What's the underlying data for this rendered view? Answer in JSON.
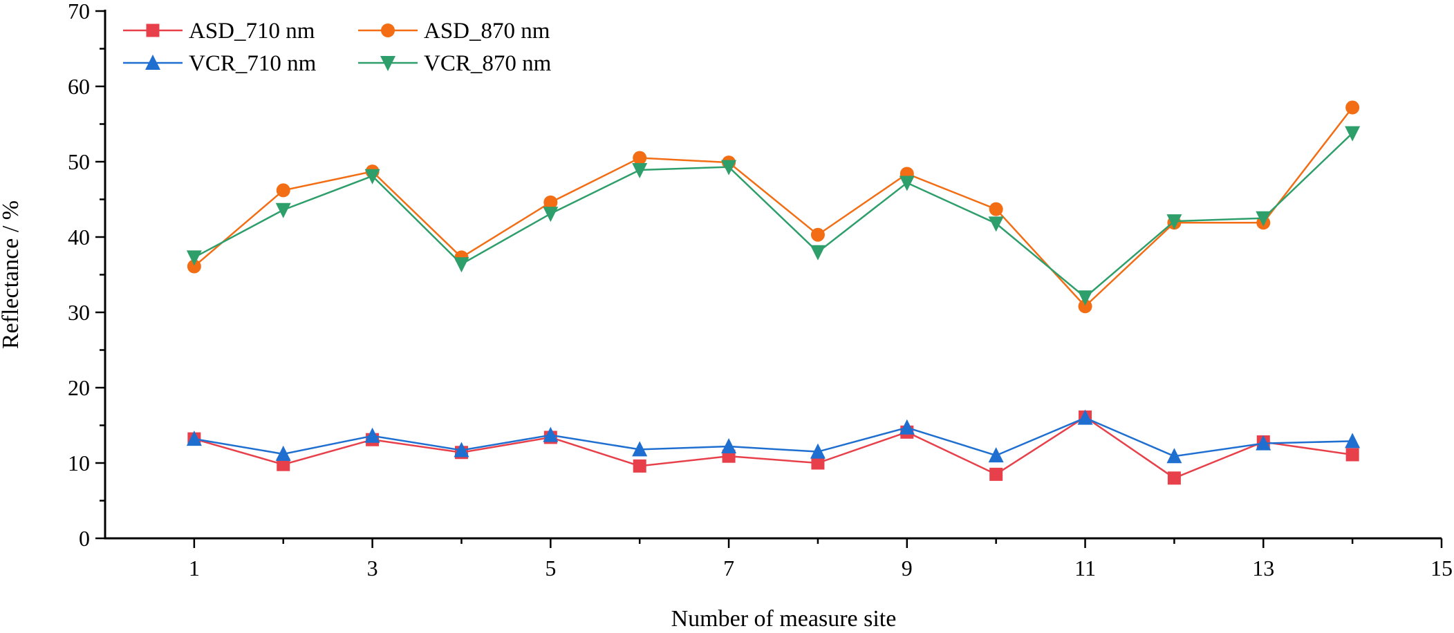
{
  "chart_data": {
    "type": "line",
    "title": "",
    "xlabel": "Number of measure site",
    "ylabel": "Reflectance / %",
    "xlim": [
      0,
      15
    ],
    "ylim": [
      0,
      70
    ],
    "xticks_labeled": [
      1,
      3,
      5,
      7,
      9,
      11,
      13,
      15
    ],
    "xticks_minor": [
      2,
      4,
      6,
      8,
      10,
      12,
      14
    ],
    "yticks": [
      0,
      10,
      20,
      30,
      40,
      50,
      60,
      70
    ],
    "grid": false,
    "legend_position": "top-left",
    "x": [
      1,
      2,
      3,
      4,
      5,
      6,
      7,
      8,
      9,
      10,
      11,
      12,
      13,
      14
    ],
    "series": [
      {
        "name": "ASD_710 nm",
        "color": "#e8404a",
        "marker": "square",
        "values": [
          13.2,
          9.8,
          13.1,
          11.4,
          13.4,
          9.6,
          10.9,
          10.0,
          14.1,
          8.5,
          16.1,
          8.0,
          12.8,
          11.1
        ]
      },
      {
        "name": "ASD_870 nm",
        "color": "#f26d14",
        "marker": "circle",
        "values": [
          36.1,
          46.2,
          48.7,
          37.3,
          44.6,
          50.5,
          49.9,
          40.3,
          48.4,
          43.7,
          30.8,
          41.9,
          41.9,
          57.2
        ]
      },
      {
        "name": "VCR_710 nm",
        "color": "#1f6fd1",
        "marker": "triangle-up",
        "values": [
          13.2,
          11.2,
          13.6,
          11.7,
          13.7,
          11.8,
          12.2,
          11.5,
          14.7,
          11.0,
          16.0,
          10.9,
          12.6,
          12.9
        ]
      },
      {
        "name": "VCR_870 nm",
        "color": "#2e9e6b",
        "marker": "triangle-down",
        "values": [
          37.3,
          43.6,
          48.1,
          36.4,
          43.1,
          48.9,
          49.3,
          38.0,
          47.2,
          41.8,
          32.0,
          42.1,
          42.5,
          53.8
        ]
      }
    ]
  }
}
